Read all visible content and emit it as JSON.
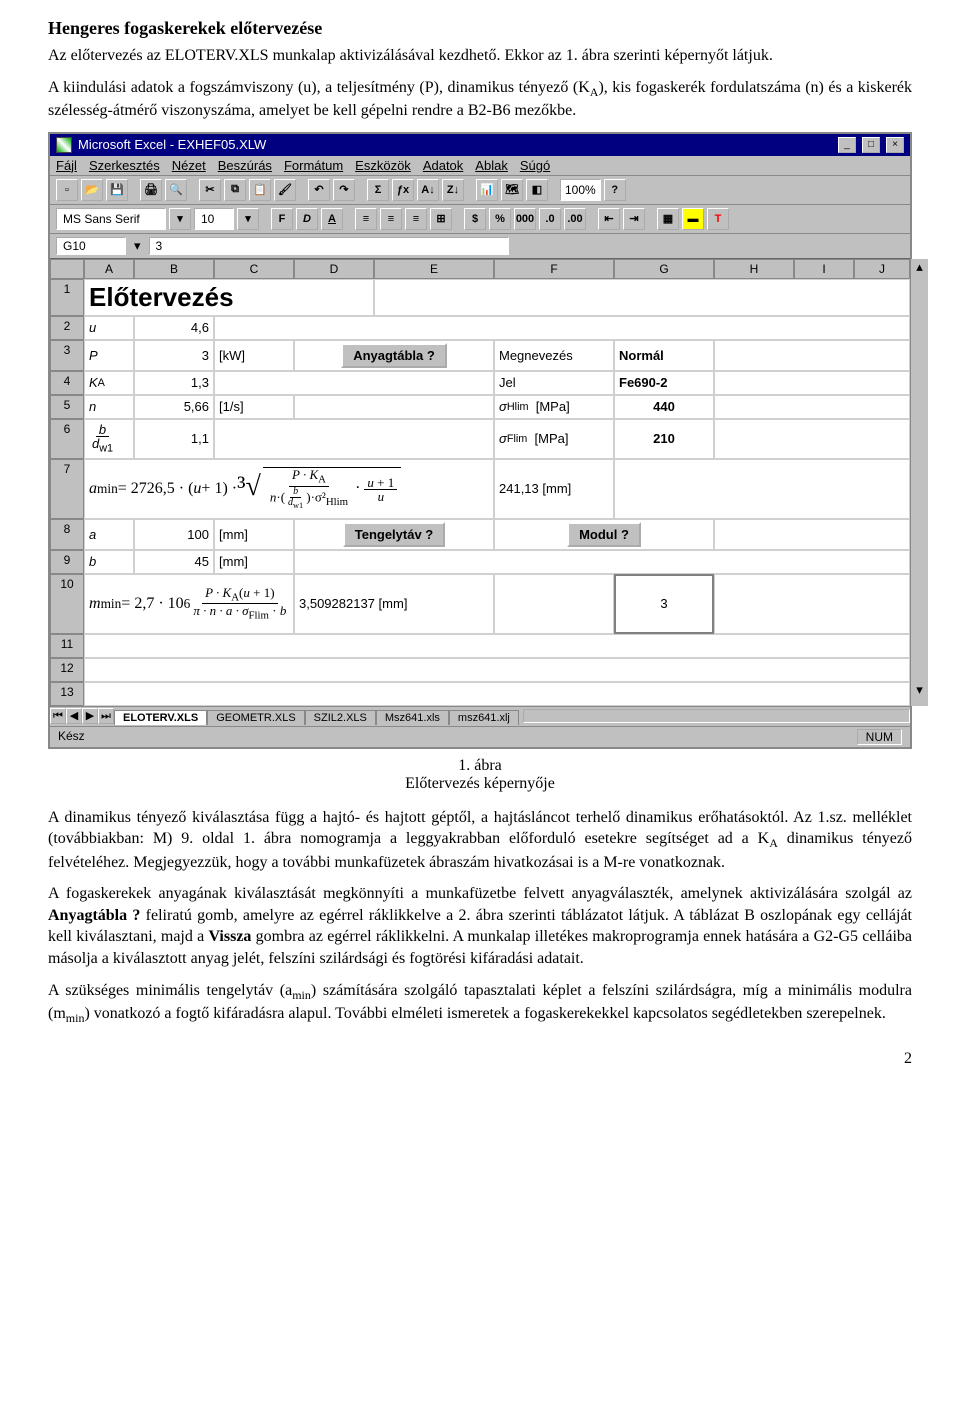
{
  "doc": {
    "title": "Hengeres fogaskerekek előtervezése",
    "p1": "Az előtervezés az ELOTERV.XLS munkalap aktivizálásával kezdhető. Ekkor az 1. ábra szerinti képernyőt látjuk.",
    "p2a": "A kiindulási adatok a fogszámviszony (u), a teljesítmény (P), dinamikus tényező (K",
    "p2sub": "A",
    "p2b": "), kis fogaskerék fordulatszáma (n) és a kiskerék szélesség-átmérő viszonyszáma, amelyet be kell gépelni rendre a B2-B6 mezőkbe.",
    "fig_num": "1. ábra",
    "fig_title": "Előtervezés képernyője",
    "p3a": "A dinamikus tényező kiválasztása függ a hajtó- és hajtott géptől, a hajtásláncot terhelő dinamikus erőhatásoktól. Az 1.sz. melléklet (továbbiakban: M) 9. oldal 1. ábra nomogramja a leggyakrabban előforduló esetekre segítséget ad a K",
    "p3sub": "A",
    "p3b": " dinamikus tényező felvételéhez. Megjegyezzük, hogy a további munkafüzetek ábraszám hivatkozásai is a M-re vonatkoznak.",
    "p4a": "A fogaskerekek anyagának kiválasztását megkönnyíti a munkafüzetbe felvett anyagválaszték, amelynek aktivizálására szolgál az ",
    "p4b": "Anyagtábla ?",
    "p4c": " feliratú gomb, amelyre az egérrel ráklikkelve a 2. ábra szerinti táblázatot látjuk. A táblázat B oszlopának egy celláját kell kiválasztani, majd a ",
    "p4d": "Vissza",
    "p4e": " gombra az egérrel ráklikkelni. A munkalap illetékes makroprogramja ennek hatására a G2-G5 celláiba másolja a kiválasztott anyag jelét, felszíni szilárdsági és fogtörési kifáradási adatait.",
    "p5a": "A szükséges minimális tengelytáv (a",
    "p5sub1": "min",
    "p5b": ") számítására szolgáló tapasztalati képlet a felszíni szilárdságra, míg a minimális modulra (m",
    "p5sub2": "min",
    "p5c": ") vonatkozó a fogtő kifáradásra alapul. További elméleti ismeretek a fogaskerekekkel kapcsolatos segédletekben szerepelnek.",
    "pagenum": "2"
  },
  "excel": {
    "title": "Microsoft Excel - EXHEF05.XLW",
    "menu": [
      "Fájl",
      "Szerkesztés",
      "Nézet",
      "Beszúrás",
      "Formátum",
      "Eszközök",
      "Adatok",
      "Ablak",
      "Súgó"
    ],
    "zoom": "100%",
    "font": "MS Sans Serif",
    "fontsize": "10",
    "cellref": "G10",
    "cellval": "3",
    "cols": [
      "A",
      "B",
      "C",
      "D",
      "E",
      "F",
      "G",
      "H",
      "I",
      "J"
    ],
    "rows": [
      "1",
      "2",
      "3",
      "4",
      "5",
      "6",
      "7",
      "8",
      "9",
      "10",
      "11",
      "12",
      "13"
    ],
    "sheet_title": "Előtervezés",
    "r2": {
      "a": "u",
      "b": "4,6"
    },
    "r3": {
      "a": "P",
      "b": "3",
      "c": "[kW]",
      "btn": "Anyagtábla ?",
      "f": "Megnevezés",
      "g": "Normál"
    },
    "r4": {
      "a": "K_A",
      "b": "1,3",
      "f": "Jel",
      "g": "Fe690-2"
    },
    "r5": {
      "a": "n",
      "b": "5,66",
      "c": "[1/s]",
      "f": "σ_Hlim",
      "funit": "[MPa]",
      "g": "440"
    },
    "r6": {
      "a": "b/d_w1",
      "b": "1,1",
      "f": "σ_Flim",
      "funit": "[MPa]",
      "g": "210"
    },
    "r7": {
      "formula_lhs": "a_min = 2726,5 · (u + 1) ·",
      "val": "241,13",
      "unit": "[mm]"
    },
    "r8": {
      "a": "a",
      "b": "100",
      "c": "[mm]",
      "btn": "Tengelytáv ?",
      "btn2": "Modul ?"
    },
    "r9": {
      "a": "b",
      "b": "45",
      "c": "[mm]"
    },
    "r10": {
      "formula_lhs": "m_min = 2,7 · 10^6",
      "val": "3,509282137",
      "unit": "[mm]",
      "g": "3"
    },
    "tabs": [
      "ELOTERV.XLS",
      "GEOMETR.XLS",
      "SZIL2.XLS",
      "Msz641.xls",
      "msz641.xlj"
    ],
    "status_left": "Kész",
    "status_right": "NUM"
  }
}
